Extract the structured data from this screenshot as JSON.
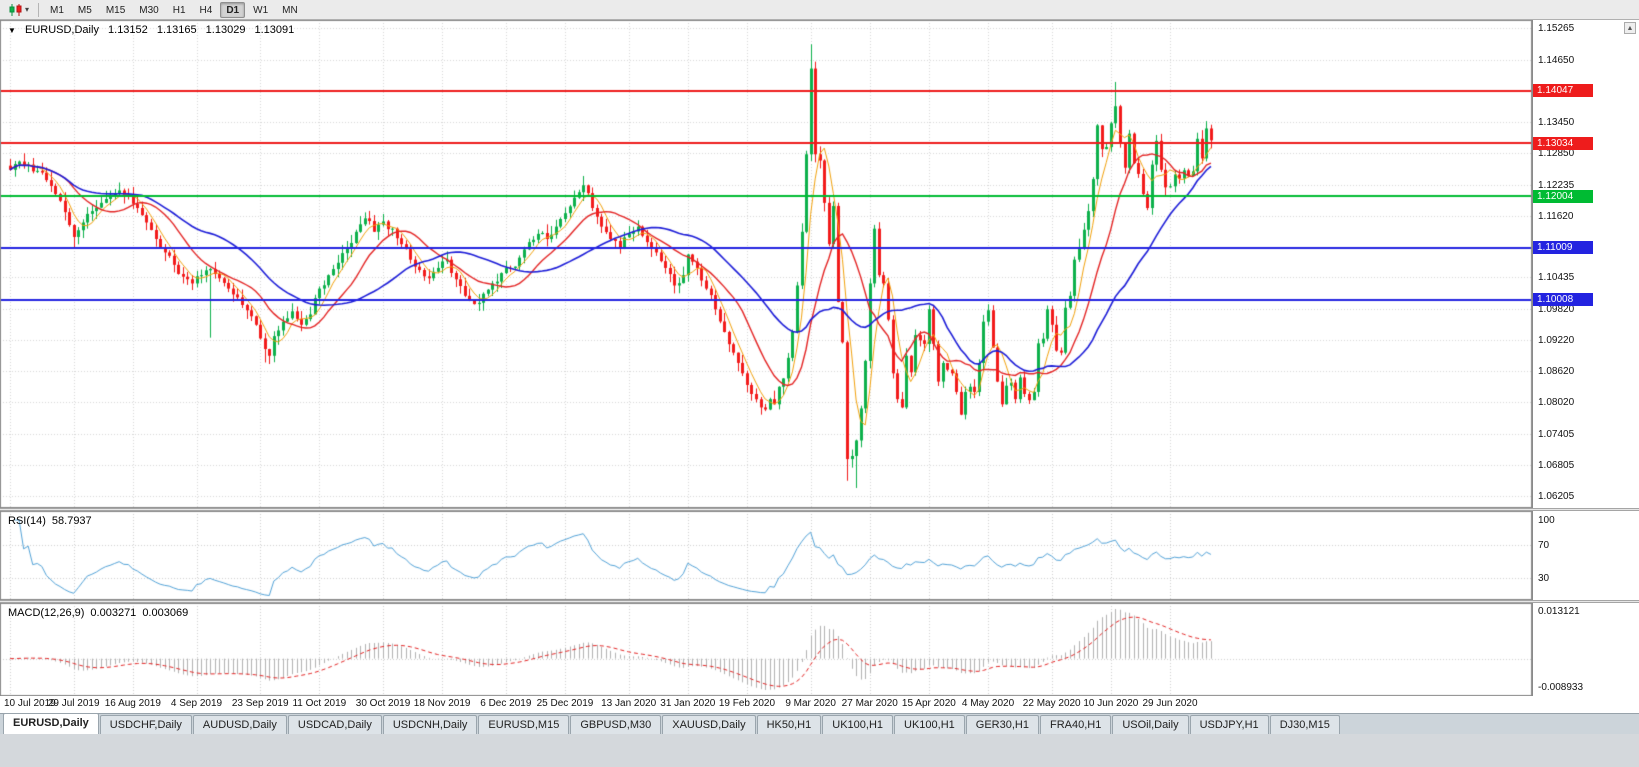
{
  "icons": {
    "collapse_glyph": "▼",
    "caret_glyph": "▾",
    "scroll_up_glyph": "▲"
  },
  "toolbar": {
    "timeframes": [
      {
        "label": "M1",
        "active": false
      },
      {
        "label": "M5",
        "active": false
      },
      {
        "label": "M15",
        "active": false
      },
      {
        "label": "M30",
        "active": false
      },
      {
        "label": "H1",
        "active": false
      },
      {
        "label": "H4",
        "active": false
      },
      {
        "label": "D1",
        "active": true
      },
      {
        "label": "W1",
        "active": false
      },
      {
        "label": "MN",
        "active": false
      }
    ]
  },
  "chart": {
    "symbol": "EURUSD,Daily",
    "ohlc": {
      "open": "1.13152",
      "high": "1.13165",
      "low": "1.13029",
      "close": "1.13091"
    },
    "colors": {
      "up": "#0db14b",
      "down": "#f21b1b",
      "grid": "#d7d7d7",
      "border": "#8a8a8a",
      "bg": "#ffffff"
    },
    "price_scale": {
      "max": 1.15265,
      "min": 1.06205
    },
    "plain_axis_labels": [
      "1.15265",
      "1.14650",
      "1.13450",
      "1.12850",
      "1.12235",
      "1.11620",
      "1.10435",
      "1.09820",
      "1.09220",
      "1.08620",
      "1.08020",
      "1.07405",
      "1.06805",
      "1.06205"
    ]
  },
  "rsi": {
    "label": "RSI(14)",
    "value": "58.7937",
    "line_color": "#53a3d8",
    "axis_labels": [
      {
        "v": 100,
        "label": "100"
      },
      {
        "v": 70,
        "label": "70"
      },
      {
        "v": 30,
        "label": "30"
      }
    ],
    "levels": [
      70,
      30
    ]
  },
  "macd": {
    "label": "MACD(12,26,9)",
    "value_main": "0.003271",
    "value_signal": "0.003069",
    "axis_max_label": "0.013121",
    "axis_min_label": "-0.008933",
    "hist_color": "#b2b2b2",
    "signal_color": "#e42525"
  },
  "tabs": [
    {
      "label": "EURUSD,Daily",
      "active": true
    },
    {
      "label": "USDCHF,Daily",
      "active": false
    },
    {
      "label": "AUDUSD,Daily",
      "active": false
    },
    {
      "label": "USDCAD,Daily",
      "active": false
    },
    {
      "label": "USDCNH,Daily",
      "active": false
    },
    {
      "label": "EURUSD,M15",
      "active": false
    },
    {
      "label": "GBPUSD,M30",
      "active": false
    },
    {
      "label": "XAUUSD,Daily",
      "active": false
    },
    {
      "label": "HK50,H1",
      "active": false
    },
    {
      "label": "UK100,H1",
      "active": false
    },
    {
      "label": "UK100,H1",
      "active": false
    },
    {
      "label": "GER30,H1",
      "active": false
    },
    {
      "label": "FRA40,H1",
      "active": false
    },
    {
      "label": "USOil,Daily",
      "active": false
    },
    {
      "label": "USDJPY,H1",
      "active": false
    },
    {
      "label": "DJ30,M15",
      "active": false
    }
  ],
  "chart_data": [
    {
      "type": "candlestick",
      "title": "EURUSD,Daily",
      "num_candles": 265,
      "price_axis_range": [
        1.06205,
        1.15265
      ],
      "x_axis_labels": [
        {
          "label": "10 Jul 2019",
          "i": 0
        },
        {
          "label": "29 Jul 2019",
          "i": 14
        },
        {
          "label": "16 Aug 2019",
          "i": 27
        },
        {
          "label": "4 Sep 2019",
          "i": 41
        },
        {
          "label": "23 Sep 2019",
          "i": 55
        },
        {
          "label": "11 Oct 2019",
          "i": 68
        },
        {
          "label": "30 Oct 2019",
          "i": 82
        },
        {
          "label": "18 Nov 2019",
          "i": 95
        },
        {
          "label": "6 Dec 2019",
          "i": 109
        },
        {
          "label": "25 Dec 2019",
          "i": 122
        },
        {
          "label": "13 Jan 2020",
          "i": 136
        },
        {
          "label": "31 Jan 2020",
          "i": 149
        },
        {
          "label": "19 Feb 2020",
          "i": 162
        },
        {
          "label": "9 Mar 2020",
          "i": 176
        },
        {
          "label": "27 Mar 2020",
          "i": 189
        },
        {
          "label": "15 Apr 2020",
          "i": 202
        },
        {
          "label": "4 May 2020",
          "i": 215
        },
        {
          "label": "22 May 2020",
          "i": 229
        },
        {
          "label": "10 Jun 2020",
          "i": 242
        },
        {
          "label": "29 Jun 2020",
          "i": 255
        }
      ],
      "anchors": [
        [
          0,
          1.1252
        ],
        [
          2,
          1.1268
        ],
        [
          4,
          1.1262
        ],
        [
          6,
          1.125
        ],
        [
          8,
          1.1232
        ],
        [
          10,
          1.1205
        ],
        [
          12,
          1.117
        ],
        [
          14,
          1.1122
        ],
        [
          15,
          1.1135
        ],
        [
          16,
          1.115
        ],
        [
          18,
          1.1172
        ],
        [
          20,
          1.1188
        ],
        [
          22,
          1.12
        ],
        [
          24,
          1.1212
        ],
        [
          26,
          1.1202
        ],
        [
          28,
          1.1178
        ],
        [
          30,
          1.115
        ],
        [
          32,
          1.1118
        ],
        [
          34,
          1.1092
        ],
        [
          36,
          1.1068
        ],
        [
          38,
          1.1045
        ],
        [
          40,
          1.1032
        ],
        [
          42,
          1.1048
        ],
        [
          44,
          1.106
        ],
        [
          46,
          1.1042
        ],
        [
          48,
          1.1022
        ],
        [
          50,
          1.1005
        ],
        [
          52,
          1.098
        ],
        [
          54,
          1.0952
        ],
        [
          56,
          1.0905
        ],
        [
          57,
          1.0892
        ],
        [
          58,
          1.093
        ],
        [
          60,
          1.0958
        ],
        [
          62,
          1.0978
        ],
        [
          64,
          1.0952
        ],
        [
          66,
          1.0972
        ],
        [
          68,
          1.1022
        ],
        [
          70,
          1.1048
        ],
        [
          72,
          1.1072
        ],
        [
          74,
          1.11
        ],
        [
          76,
          1.1132
        ],
        [
          78,
          1.1158
        ],
        [
          80,
          1.1132
        ],
        [
          82,
          1.1152
        ],
        [
          84,
          1.1138
        ],
        [
          86,
          1.1108
        ],
        [
          88,
          1.1078
        ],
        [
          90,
          1.1058
        ],
        [
          92,
          1.1042
        ],
        [
          94,
          1.1062
        ],
        [
          96,
          1.1078
        ],
        [
          98,
          1.104
        ],
        [
          100,
          1.1008
        ],
        [
          102,
          1.0992
        ],
        [
          104,
          1.1012
        ],
        [
          106,
          1.1032
        ],
        [
          108,
          1.1052
        ],
        [
          110,
          1.1062
        ],
        [
          112,
          1.1082
        ],
        [
          114,
          1.1112
        ],
        [
          116,
          1.1128
        ],
        [
          118,
          1.1118
        ],
        [
          120,
          1.1142
        ],
        [
          122,
          1.1168
        ],
        [
          124,
          1.1198
        ],
        [
          126,
          1.1222
        ],
        [
          128,
          1.1178
        ],
        [
          130,
          1.1142
        ],
        [
          132,
          1.1118
        ],
        [
          134,
          1.1102
        ],
        [
          136,
          1.1128
        ],
        [
          138,
          1.1142
        ],
        [
          140,
          1.1112
        ],
        [
          142,
          1.1092
        ],
        [
          144,
          1.1062
        ],
        [
          146,
          1.1028
        ],
        [
          148,
          1.1048
        ],
        [
          149,
          1.1088
        ],
        [
          151,
          1.1062
        ],
        [
          153,
          1.1022
        ],
        [
          155,
          1.0982
        ],
        [
          157,
          1.0938
        ],
        [
          159,
          1.0898
        ],
        [
          161,
          1.0858
        ],
        [
          163,
          1.0818
        ],
        [
          165,
          1.0792
        ],
        [
          166,
          1.0788
        ],
        [
          167,
          1.0808
        ],
        [
          168,
          1.0798
        ],
        [
          169,
          1.0832
        ],
        [
          170,
          1.0848
        ],
        [
          171,
          1.0888
        ],
        [
          172,
          1.0938
        ],
        [
          173,
          1.1028
        ],
        [
          174,
          1.1132
        ],
        [
          175,
          1.1282
        ],
        [
          176,
          1.1448
        ],
        [
          177,
          1.1282
        ],
        [
          178,
          1.127
        ],
        [
          179,
          1.1188
        ],
        [
          180,
          1.1108
        ],
        [
          181,
          1.1182
        ],
        [
          182,
          1.0996
        ],
        [
          183,
          1.0918
        ],
        [
          184,
          1.0692
        ],
        [
          185,
          1.0698
        ],
        [
          186,
          1.0728
        ],
        [
          187,
          1.079
        ],
        [
          188,
          1.0882
        ],
        [
          189,
          1.1032
        ],
        [
          190,
          1.1138
        ],
        [
          191,
          1.1048
        ],
        [
          192,
          1.1032
        ],
        [
          193,
          1.0962
        ],
        [
          194,
          1.0858
        ],
        [
          195,
          1.0808
        ],
        [
          196,
          1.0792
        ],
        [
          197,
          1.0892
        ],
        [
          198,
          1.086
        ],
        [
          199,
          1.0932
        ],
        [
          200,
          1.0922
        ],
        [
          201,
          1.0915
        ],
        [
          202,
          1.0982
        ],
        [
          203,
          1.0915
        ],
        [
          204,
          1.0842
        ],
        [
          205,
          1.0878
        ],
        [
          206,
          1.0865
        ],
        [
          207,
          1.0858
        ],
        [
          208,
          1.0822
        ],
        [
          209,
          1.0778
        ],
        [
          210,
          1.0822
        ],
        [
          211,
          1.0832
        ],
        [
          212,
          1.0822
        ],
        [
          213,
          1.0878
        ],
        [
          214,
          1.0958
        ],
        [
          215,
          1.098
        ],
        [
          216,
          1.0908
        ],
        [
          217,
          1.0842
        ],
        [
          218,
          1.0798
        ],
        [
          219,
          1.0834
        ],
        [
          220,
          1.084
        ],
        [
          221,
          1.0808
        ],
        [
          222,
          1.085
        ],
        [
          223,
          1.0818
        ],
        [
          224,
          1.0806
        ],
        [
          225,
          1.0822
        ],
        [
          226,
          1.0916
        ],
        [
          227,
          1.0925
        ],
        [
          228,
          1.0982
        ],
        [
          229,
          1.0952
        ],
        [
          230,
          1.0902
        ],
        [
          231,
          1.0898
        ],
        [
          232,
          1.0985
        ],
        [
          233,
          1.1008
        ],
        [
          234,
          1.1078
        ],
        [
          235,
          1.1102
        ],
        [
          236,
          1.1136
        ],
        [
          237,
          1.1172
        ],
        [
          238,
          1.1234
        ],
        [
          239,
          1.1338
        ],
        [
          240,
          1.1292
        ],
        [
          241,
          1.1296
        ],
        [
          242,
          1.1342
        ],
        [
          243,
          1.1375
        ],
        [
          244,
          1.1302
        ],
        [
          245,
          1.1256
        ],
        [
          246,
          1.1322
        ],
        [
          247,
          1.1265
        ],
        [
          248,
          1.1244
        ],
        [
          249,
          1.1205
        ],
        [
          250,
          1.1178
        ],
        [
          251,
          1.1262
        ],
        [
          252,
          1.1308
        ],
        [
          253,
          1.1252
        ],
        [
          254,
          1.1218
        ],
        [
          255,
          1.122
        ],
        [
          256,
          1.1243
        ],
        [
          257,
          1.1235
        ],
        [
          258,
          1.1251
        ],
        [
          259,
          1.124
        ],
        [
          260,
          1.1249
        ],
        [
          261,
          1.1312
        ],
        [
          262,
          1.1274
        ],
        [
          263,
          1.1332
        ],
        [
          264,
          1.1309
        ]
      ],
      "spikes": [
        {
          "i": 14,
          "low": 1.1101
        },
        {
          "i": 44,
          "low": 1.0927
        },
        {
          "i": 56,
          "low": 1.0879
        },
        {
          "i": 126,
          "high": 1.124
        },
        {
          "i": 165,
          "low": 1.0778
        },
        {
          "i": 176,
          "high": 1.1495
        },
        {
          "i": 184,
          "low": 1.065
        },
        {
          "i": 186,
          "low": 1.0636
        },
        {
          "i": 243,
          "high": 1.1422
        }
      ],
      "hlines": [
        {
          "price": 1.14047,
          "label": "1.14047",
          "color": "#ee1c1c"
        },
        {
          "price": 1.13034,
          "label": "1.13034",
          "color": "#ee1c1c"
        },
        {
          "price": 1.12004,
          "label": "1.12004",
          "color": "#00bb33"
        },
        {
          "price": 1.11009,
          "label": "1.11009",
          "color": "#2323e0"
        },
        {
          "price": 1.10008,
          "label": "1.10008",
          "color": "#2323e0"
        }
      ],
      "moving_averages": [
        {
          "name": "fast",
          "period": 5,
          "color": "#f2a20d",
          "width": 1
        },
        {
          "name": "medium",
          "period": 13,
          "color": "#e42525",
          "width": 1.4
        },
        {
          "name": "slow",
          "period": 30,
          "color": "#1d1dd8",
          "width": 1.6
        }
      ]
    },
    {
      "type": "line",
      "name": "RSI(14)",
      "current_value": 58.7937,
      "range": [
        0,
        100
      ],
      "levels": [
        30,
        70
      ]
    },
    {
      "type": "bar+line",
      "name": "MACD(12,26,9)",
      "current_values": [
        0.003271,
        0.003069
      ],
      "axis_max": 0.013121,
      "axis_min": -0.008933
    }
  ]
}
